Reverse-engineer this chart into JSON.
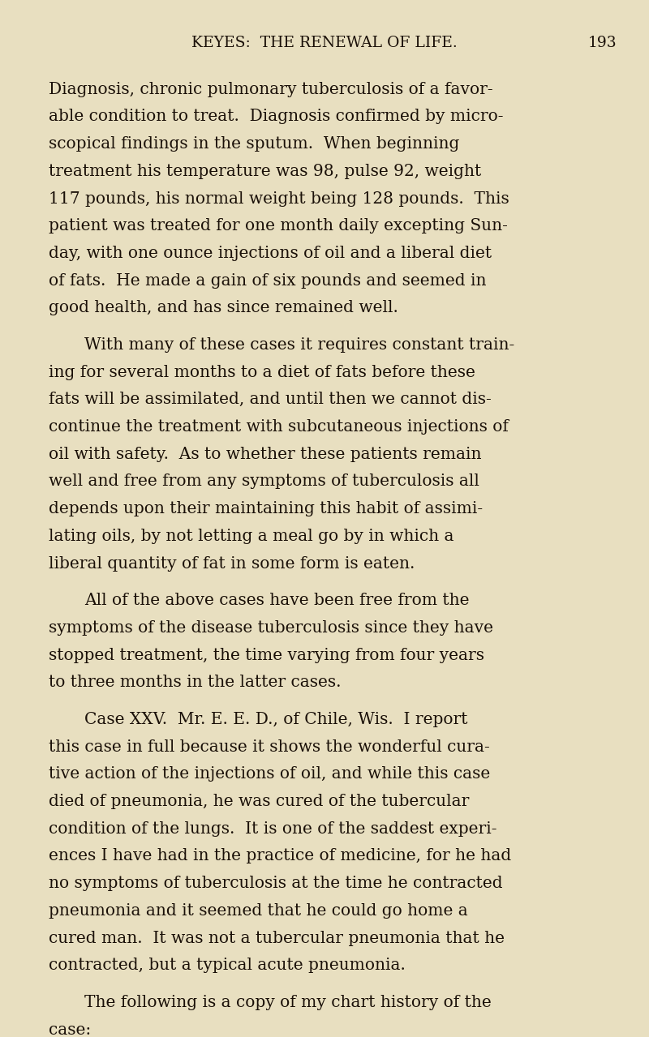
{
  "background_color": "#e8dfc0",
  "text_color": "#1a1008",
  "page_width": 8.0,
  "page_height": 12.79,
  "dpi": 100,
  "header": "KEYES:  THE RENEWAL OF LIFE.",
  "page_number": "193",
  "header_fontsize": 13.5,
  "body_fontsize": 14.5,
  "font_family": "serif",
  "paragraphs": [
    {
      "indent": false,
      "text": "Diagnosis, chronic pulmonary tuberculosis of a favor-\nable condition to treat.  Diagnosis confirmed by micro-\nscopical findings in the sputum.  When beginning\ntreatment his temperature was 98, pulse 92, weight\n117 pounds, his normal weight being 128 pounds.  This\npatient was treated for one month daily excepting Sun-\nday, with one ounce injections of oil and a liberal diet\nof fats.  He made a gain of six pounds and seemed in\ngood health, and has since remained well."
    },
    {
      "indent": true,
      "text": "With many of these cases it requires constant train-\ning for several months to a diet of fats before these\nfats will be assimilated, and until then we cannot dis-\ncontinue the treatment with subcutaneous injections of\noil with safety.  As to whether these patients remain\nwell and free from any symptoms of tuberculosis all\ndepends upon their maintaining this habit of assimi-\nlating oils, by not letting a meal go by in which a\nliberal quantity of fat in some form is eaten."
    },
    {
      "indent": true,
      "text": "All of the above cases have been free from the\nsymptoms of the disease tuberculosis since they have\nstopped treatment, the time varying from four years\nto three months in the latter cases."
    },
    {
      "indent": true,
      "text": "Case XXV.  Mr. E. E. D., of Chile, Wis.  I report\nthis case in full because it shows the wonderful cura-\ntive action of the injections of oil, and while this case\ndied of pneumonia, he was cured of the tubercular\ncondition of the lungs.  It is one of the saddest experi-\nences I have had in the practice of medicine, for he had\nno symptoms of tuberculosis at the time he contracted\npneumonia and it seemed that he could go home a\ncured man.  It was not a tubercular pneumonia that he\ncontracted, but a typical acute pneumonia."
    },
    {
      "indent": true,
      "text": "The following is a copy of my chart history of the\ncase:"
    }
  ]
}
